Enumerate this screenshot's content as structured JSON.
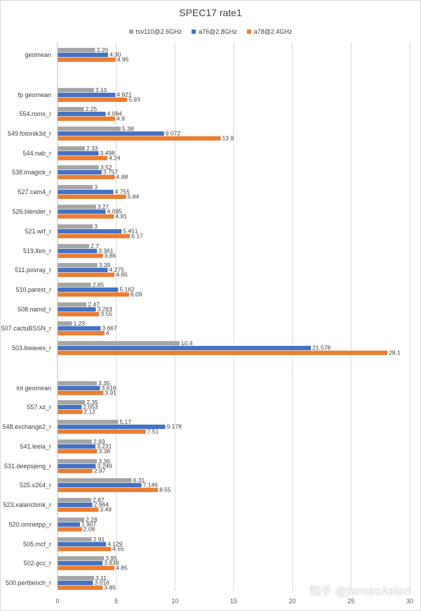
{
  "watermark": "知乎 @JamesAslan",
  "chart_data": {
    "type": "bar",
    "orientation": "horizontal",
    "title": "SPEC17 rate1",
    "xlabel": "",
    "ylabel": "",
    "xlim": [
      0,
      30
    ],
    "xticks": [
      "0",
      "5",
      "10",
      "15",
      "20",
      "25",
      "30"
    ],
    "grid": true,
    "legend_position": "top",
    "categories": [
      "geomean",
      "fp geomean",
      "554.roms_r",
      "549.fotonik3d_r",
      "544.nab_r",
      "538.imagick_r",
      "527.cam4_r",
      "526.blender_r",
      "521.wrf_r",
      "519.lbm_r",
      "511.povray_r",
      "510.parest_r",
      "508.namd_r",
      "507.cactuBSSN_r",
      "503.bwaves_r",
      "int geomean",
      "557.xz_r",
      "548.exchange2_r",
      "541.leela_r",
      "531.deepsjeng_r",
      "525.x264_r",
      "523.xalancbmk_r",
      "520.omnetpp_r",
      "505.mcf_r",
      "502.gcc_r",
      "500.perlbench_r"
    ],
    "series": [
      {
        "name": "tsv110@2.6GHz",
        "color": "#a5a5a5",
        "values": [
          3.2,
          3.1,
          2.25,
          5.38,
          2.33,
          3.52,
          3,
          3.27,
          3,
          2.7,
          3.39,
          2.85,
          2.47,
          1.23,
          10.4,
          3.35,
          2.35,
          5.17,
          2.93,
          3.36,
          6.31,
          2.87,
          2.28,
          2.91,
          3.95,
          3.11
        ],
        "labels": [
          "3.20",
          "3.10",
          "2.25",
          "5.38",
          "2.33",
          "3.52",
          "3",
          "3.27",
          "3",
          "2.7",
          "3.39",
          "2.85",
          "2.47",
          "1.23",
          "10.4",
          "3.35",
          "2.35",
          "5.17",
          "2.93",
          "3.36",
          "6.31",
          "2.87",
          "2.28",
          "2.91",
          "3.95",
          "3.11"
        ]
      },
      {
        "name": "a76@2.8GHz",
        "color": "#4472c4",
        "values": [
          4.3,
          4.921,
          4.094,
          9.072,
          3.498,
          3.757,
          4.755,
          4.095,
          5.451,
          3.361,
          4.275,
          5.162,
          3.263,
          3.667,
          21.578,
          3.616,
          2.053,
          9.178,
          3.231,
          3.249,
          7.146,
          2.964,
          1.907,
          4.129,
          3.838,
          3.016
        ],
        "labels": [
          "4.30",
          "4.921",
          "4.094",
          "9.072",
          "3.498",
          "3.757",
          "4.755",
          "4.095",
          "5.451",
          "3.361",
          "4.275",
          "5.162",
          "3.263",
          "3.667",
          "21.578",
          "3.616",
          "2.053",
          "9.178",
          "3.231",
          "3.249",
          "7.146",
          "2.964",
          "1.907",
          "4.129",
          "3.838",
          "3.016"
        ]
      },
      {
        "name": "a78@2.4GHz",
        "color": "#ed7d31",
        "values": [
          4.95,
          5.93,
          4.9,
          13.9,
          4.24,
          4.88,
          5.84,
          4.81,
          6.17,
          3.86,
          4.85,
          6.09,
          3.55,
          4,
          28.1,
          3.91,
          2.12,
          7.51,
          3.38,
          2.97,
          8.55,
          3.49,
          2.08,
          4.55,
          4.85,
          3.85
        ],
        "labels": [
          "4.95",
          "5.93",
          "4.9",
          "13.9",
          "4.24",
          "4.88",
          "5.84",
          "4.81",
          "6.17",
          "3.86",
          "4.85",
          "6.09",
          "3.55",
          "4",
          "28.1",
          "3.91",
          "2.12",
          "7.51",
          "3.38",
          "2.97",
          "8.55",
          "3.49",
          "2.08",
          "4.55",
          "4.85",
          "3.85"
        ]
      }
    ]
  }
}
